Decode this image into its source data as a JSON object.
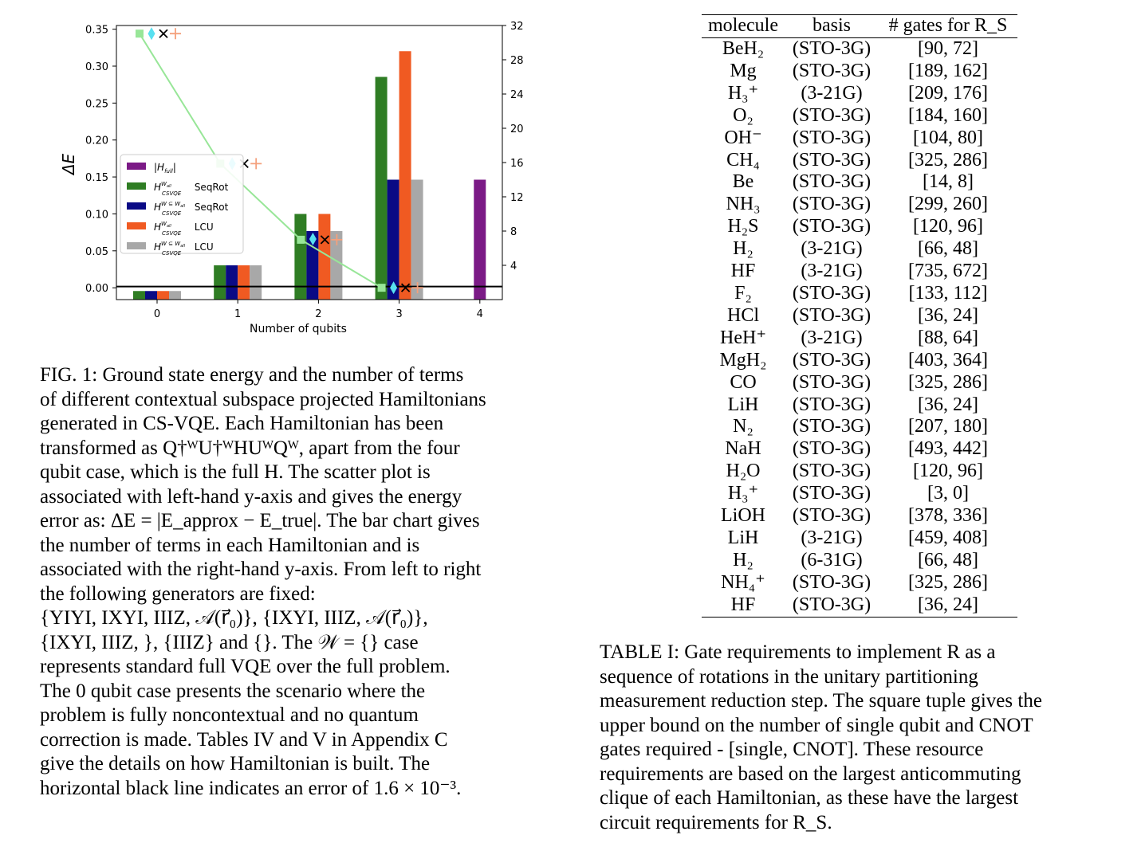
{
  "chart_data": {
    "type": "bar",
    "xlabel": "Number of qubits",
    "ylabel_left": "ΔE",
    "ylabel_right": "Number of terms",
    "x_categories": [
      "0",
      "1",
      "2",
      "3",
      "4"
    ],
    "ylim_left": [
      -0.016,
      0.355
    ],
    "ylim_right": [
      0,
      32
    ],
    "yticks_left": [
      "0.00",
      "0.05",
      "0.10",
      "0.15",
      "0.20",
      "0.25",
      "0.30",
      "0.35"
    ],
    "yticks_right": [
      "4",
      "8",
      "12",
      "16",
      "20",
      "24",
      "28",
      "32"
    ],
    "bar_series": [
      {
        "name": "|H_full|",
        "color": "#7b1a86",
        "values": [
          null,
          null,
          null,
          null,
          14
        ]
      },
      {
        "name": "H_CSVQE^{W_all} SeqRot",
        "color": "#2f7d24",
        "values": [
          1,
          4,
          10,
          26,
          null
        ]
      },
      {
        "name": "H_CSVQE^{W⊆W_all} SeqRot",
        "color": "#0a0a85",
        "values": [
          1,
          4,
          8,
          14,
          null
        ]
      },
      {
        "name": "H_CSVQE^{W_all} LCU",
        "color": "#f05a22",
        "values": [
          1,
          4,
          10,
          29,
          null
        ]
      },
      {
        "name": "H_CSVQE^{W⊆W_all} LCU",
        "color": "#a8a8a8",
        "values": [
          1,
          4,
          8,
          14,
          null
        ]
      }
    ],
    "scatter_series": [
      {
        "marker": "square",
        "color": "#98e698",
        "line": true,
        "values": [
          0.344,
          0.168,
          0.065,
          0.0
        ]
      },
      {
        "marker": "diamond",
        "color": "#58e0f0",
        "values": [
          0.344,
          0.168,
          0.066,
          0.0
        ]
      },
      {
        "marker": "x",
        "color": "#000000",
        "values": [
          0.344,
          0.168,
          0.065,
          0.0
        ]
      },
      {
        "marker": "plus",
        "color": "#f4a07c",
        "values": [
          0.344,
          0.168,
          0.065,
          0.0
        ]
      }
    ],
    "hline": 0.0016
  },
  "legend": {
    "labels": [
      {
        "main": "|H",
        "sub": "full",
        "tail": "|"
      },
      {
        "main": "H",
        "sup": "W",
        "supsub": "all",
        "sub": "CSVQE",
        "tail": "SeqRot"
      },
      {
        "main": "H",
        "sup": "W ⊆ W",
        "supsub": "all",
        "sub": "CSVQE",
        "tail": "SeqRot"
      },
      {
        "main": "H",
        "sup": "W",
        "supsub": "all",
        "sub": "CSVQE",
        "tail": "LCU"
      },
      {
        "main": "H",
        "sup": "W ⊆ W",
        "supsub": "all",
        "sub": "CSVQE",
        "tail": "LCU"
      }
    ]
  },
  "fig_caption": {
    "lines": [
      "FIG. 1: Ground state energy and the number of terms",
      "of different contextual subspace projected Hamiltonians",
      "generated in CS-VQE. Each Hamiltonian has been",
      "transformed as Q†ᵂU†ᵂHUᵂQᵂ, apart from the four",
      "qubit case, which is the full H. The scatter plot is",
      "associated with left-hand y-axis and gives the energy",
      "error as: ΔE = |E_approx − E_true|. The bar chart gives",
      "the number of terms in each Hamiltonian and is",
      "associated with the right-hand y-axis. From left to right",
      "the following generators are fixed:",
      "{YIYI, IXYI, IIIZ, 𝒜(r⃗₀)}, {IXYI, IIIZ, 𝒜(r⃗₀)},",
      "{IXYI, IIIZ, }, {IIIZ} and {}. The 𝒲 = {} case",
      "represents standard full VQE over the full problem.",
      "The 0 qubit case presents the scenario where the",
      "problem is fully noncontextual and no quantum",
      "correction is made. Tables IV and V in Appendix C",
      "give the details on how Hamiltonian is built. The",
      "horizontal black line indicates an error of 1.6 × 10⁻³."
    ]
  },
  "table": {
    "headers": [
      "molecule",
      "basis",
      "# gates for R_S"
    ],
    "rows": [
      [
        "BeH₂",
        "(STO-3G)",
        "[90, 72]"
      ],
      [
        "Mg",
        "(STO-3G)",
        "[189, 162]"
      ],
      [
        "H₃⁺",
        "(3-21G)",
        "[209, 176]"
      ],
      [
        "O₂",
        "(STO-3G)",
        "[184, 160]"
      ],
      [
        "OH⁻",
        "(STO-3G)",
        "[104, 80]"
      ],
      [
        "CH₄",
        "(STO-3G)",
        "[325, 286]"
      ],
      [
        "Be",
        "(STO-3G)",
        "[14, 8]"
      ],
      [
        "NH₃",
        "(STO-3G)",
        "[299, 260]"
      ],
      [
        "H₂S",
        "(STO-3G)",
        "[120, 96]"
      ],
      [
        "H₂",
        "(3-21G)",
        "[66, 48]"
      ],
      [
        "HF",
        "(3-21G)",
        "[735, 672]"
      ],
      [
        "F₂",
        "(STO-3G)",
        "[133, 112]"
      ],
      [
        "HCl",
        "(STO-3G)",
        "[36, 24]"
      ],
      [
        "HeH⁺",
        "(3-21G)",
        "[88, 64]"
      ],
      [
        "MgH₂",
        "(STO-3G)",
        "[403, 364]"
      ],
      [
        "CO",
        "(STO-3G)",
        "[325, 286]"
      ],
      [
        "LiH",
        "(STO-3G)",
        "[36, 24]"
      ],
      [
        "N₂",
        "(STO-3G)",
        "[207, 180]"
      ],
      [
        "NaH",
        "(STO-3G)",
        "[493, 442]"
      ],
      [
        "H₂O",
        "(STO-3G)",
        "[120, 96]"
      ],
      [
        "H₃⁺",
        "(STO-3G)",
        "[3, 0]"
      ],
      [
        "LiOH",
        "(STO-3G)",
        "[378, 336]"
      ],
      [
        "LiH",
        "(3-21G)",
        "[459, 408]"
      ],
      [
        "H₂",
        "(6-31G)",
        "[66, 48]"
      ],
      [
        "NH₄⁺",
        "(STO-3G)",
        "[325, 286]"
      ],
      [
        "HF",
        "(STO-3G)",
        "[36, 24]"
      ]
    ]
  },
  "table_caption": {
    "lines": [
      "TABLE I: Gate requirements to implement R as a",
      "sequence of rotations in the unitary partitioning",
      "measurement reduction step. The square tuple gives the",
      "upper bound on the number of single qubit and CNOT",
      "gates required - [single, CNOT]. These resource",
      "requirements are based on the largest anticommuting",
      "clique of each Hamiltonian, as these have the largest",
      "circuit requirements for R_S."
    ]
  }
}
